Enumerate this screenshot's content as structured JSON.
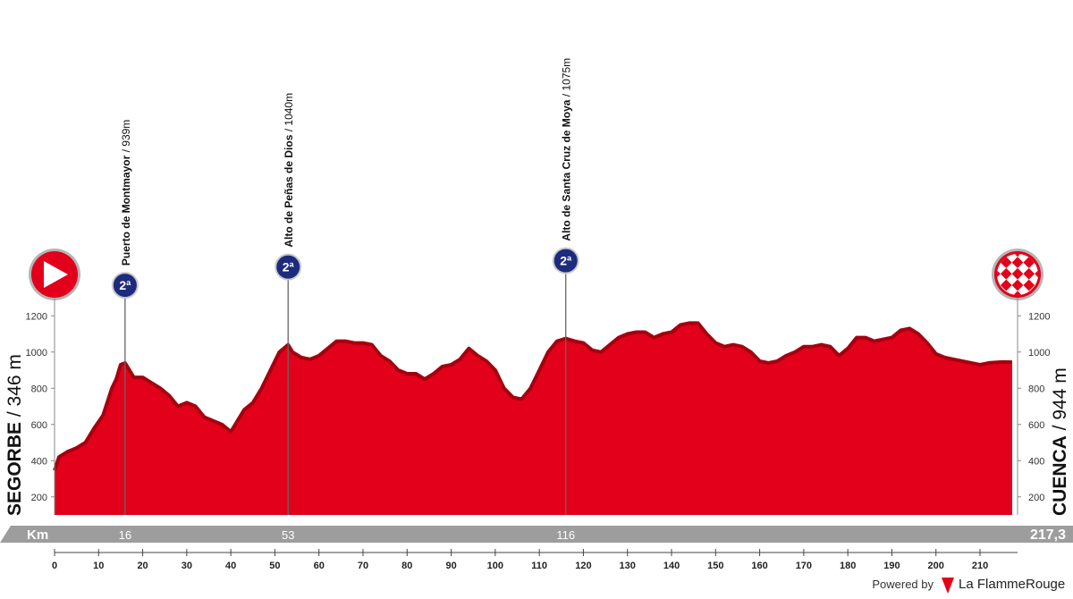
{
  "chart_data": {
    "type": "area",
    "start": {
      "name": "SEGORBE",
      "elevation_label": "/ 346 m",
      "elevation": 346
    },
    "finish": {
      "name": "CUENCA",
      "elevation_label": "/ 944 m",
      "elevation": 944
    },
    "x": [
      0,
      1,
      3,
      5,
      7,
      9,
      11,
      13,
      14,
      15,
      16,
      17,
      18,
      20,
      22,
      24,
      26,
      28,
      30,
      32,
      34,
      36,
      38,
      40,
      41,
      43,
      45,
      47,
      49,
      51,
      53,
      54,
      56,
      58,
      60,
      62,
      64,
      66,
      68,
      70,
      72,
      74,
      76,
      78,
      80,
      82,
      84,
      86,
      88,
      90,
      92,
      94,
      96,
      98,
      100,
      102,
      104,
      106,
      108,
      110,
      112,
      114,
      116,
      118,
      120,
      122,
      124,
      126,
      128,
      130,
      132,
      134,
      136,
      138,
      140,
      142,
      144,
      146,
      148,
      150,
      152,
      154,
      156,
      158,
      160,
      162,
      164,
      166,
      168,
      170,
      172,
      174,
      176,
      178,
      180,
      182,
      184,
      186,
      188,
      190,
      192,
      194,
      196,
      198,
      200,
      202,
      204,
      206,
      208,
      210,
      212,
      215,
      217.3
    ],
    "values": [
      346,
      420,
      450,
      470,
      500,
      580,
      650,
      800,
      850,
      930,
      939,
      900,
      860,
      860,
      830,
      800,
      760,
      700,
      720,
      700,
      640,
      620,
      600,
      560,
      600,
      680,
      720,
      800,
      900,
      1000,
      1040,
      1000,
      970,
      960,
      980,
      1020,
      1060,
      1060,
      1050,
      1050,
      1040,
      980,
      950,
      900,
      880,
      880,
      850,
      880,
      920,
      930,
      960,
      1020,
      980,
      950,
      900,
      800,
      750,
      740,
      800,
      900,
      1000,
      1060,
      1075,
      1060,
      1050,
      1010,
      1000,
      1040,
      1080,
      1100,
      1110,
      1110,
      1080,
      1100,
      1110,
      1150,
      1160,
      1160,
      1100,
      1050,
      1030,
      1040,
      1030,
      1000,
      950,
      940,
      950,
      980,
      1000,
      1030,
      1030,
      1040,
      1030,
      980,
      1020,
      1080,
      1080,
      1060,
      1070,
      1080,
      1120,
      1130,
      1100,
      1050,
      990,
      970,
      960,
      950,
      940,
      930,
      940,
      945,
      944
    ],
    "color": "#e2001a",
    "xlim": [
      0,
      217.3
    ],
    "ylim": [
      100,
      1300
    ],
    "xticks": [
      0,
      10,
      20,
      30,
      40,
      50,
      60,
      70,
      80,
      90,
      100,
      110,
      120,
      130,
      140,
      150,
      160,
      170,
      180,
      190,
      200,
      210
    ],
    "yticks": [
      200,
      400,
      600,
      800,
      1000,
      1200
    ],
    "x_axis_label": "Km",
    "km_markers": [
      16,
      53,
      116,
      {
        "value": 217.3,
        "label": "217,3"
      }
    ],
    "climbs": [
      {
        "name": "Puerto de Montmayor",
        "elevation_label": "/ 939m",
        "category": "2ª",
        "km": 16,
        "elevation": 939
      },
      {
        "name": "Alto de Peñas de Dios",
        "elevation_label": "/ 1040m",
        "category": "2ª",
        "km": 53,
        "elevation": 1040
      },
      {
        "name": "Alto de Santa Cruz de Moya",
        "elevation_label": "/ 1075m",
        "category": "2ª",
        "km": 116,
        "elevation": 1075
      }
    ],
    "footer": {
      "powered_by": "Powered by",
      "brand": "La FlammeRouge"
    }
  }
}
